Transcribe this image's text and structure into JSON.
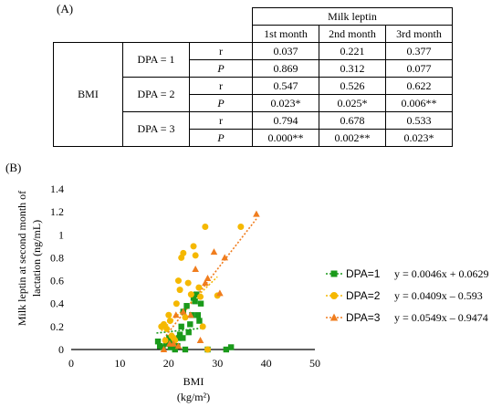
{
  "panel_a_label": "(A)",
  "panel_b_label": "(B)",
  "table": {
    "group_header": "Milk leptin",
    "column_headers": [
      "1st month",
      "2nd month",
      "3rd month"
    ],
    "row_variable": "BMI",
    "groups": [
      {
        "dpa_label": "DPA = 1",
        "r_label": "r",
        "p_label": "P",
        "r_values": [
          "0.037",
          "0.221",
          "0.377"
        ],
        "p_values": [
          "0.869",
          "0.312",
          "0.077"
        ]
      },
      {
        "dpa_label": "DPA = 2",
        "r_label": "r",
        "p_label": "P",
        "r_values": [
          "0.547",
          "0.526",
          "0.622"
        ],
        "p_values": [
          "0.023*",
          "0.025*",
          "0.006**"
        ]
      },
      {
        "dpa_label": "DPA = 3",
        "r_label": "r",
        "p_label": "P",
        "r_values": [
          "0.794",
          "0.678",
          "0.533"
        ],
        "p_values": [
          "0.000**",
          "0.002**",
          "0.023*"
        ]
      }
    ]
  },
  "chart_data": {
    "type": "scatter",
    "title": "",
    "xlabel": "BMI",
    "xlabel_unit": "(kg/m²)",
    "ylabel_line1": "Milk leptin at second month of",
    "ylabel_line2": "lactation (ng/mL)",
    "xlim": [
      0,
      50
    ],
    "ylim": [
      0,
      1.4
    ],
    "x_ticks": [
      "0",
      "10",
      "20",
      "30",
      "40",
      "50"
    ],
    "y_ticks": [
      "0",
      "0.2",
      "0.4",
      "0.6",
      "0.8",
      "1",
      "1.2",
      "1.4"
    ],
    "grid": false,
    "legend_position": "right",
    "series": [
      {
        "name": "DPA=1",
        "equation": "y = 0.0046x + 0.0629",
        "marker": "square",
        "color": "#1a9a1a",
        "trendline": {
          "x": [
            17.5,
            27.5
          ]
        },
        "points": [
          [
            17.8,
            0.07
          ],
          [
            18.2,
            0.03
          ],
          [
            18.8,
            0.02
          ],
          [
            19.5,
            0.05
          ],
          [
            20.1,
            0.1
          ],
          [
            20.4,
            0.02
          ],
          [
            20.9,
            0.05
          ],
          [
            21.3,
            0.0
          ],
          [
            21.8,
            0.03
          ],
          [
            22.3,
            0.13
          ],
          [
            22.6,
            0.2
          ],
          [
            22.9,
            0.1
          ],
          [
            23.4,
            0.0
          ],
          [
            23.7,
            0.38
          ],
          [
            24.1,
            0.15
          ],
          [
            24.4,
            0.22
          ],
          [
            24.8,
            0.3
          ],
          [
            25.1,
            0.45
          ],
          [
            25.4,
            0.42
          ],
          [
            25.7,
            0.48
          ],
          [
            26.0,
            0.3
          ],
          [
            26.3,
            0.25
          ],
          [
            26.6,
            0.4
          ],
          [
            22.1,
            0.1
          ],
          [
            23.0,
            0.33
          ],
          [
            28.0,
            0.0
          ],
          [
            31.8,
            0.0
          ],
          [
            32.8,
            0.02
          ]
        ]
      },
      {
        "name": "DPA=2",
        "equation": "y = 0.0409x – 0.593",
        "marker": "circle",
        "color": "#f5b800",
        "trendline": {
          "x": [
            18.5,
            30.0
          ]
        },
        "points": [
          [
            18.5,
            0.2
          ],
          [
            19.0,
            0.22
          ],
          [
            19.3,
            0.08
          ],
          [
            19.6,
            0.18
          ],
          [
            20.0,
            0.3
          ],
          [
            20.3,
            0.25
          ],
          [
            20.6,
            0.12
          ],
          [
            21.0,
            0.1
          ],
          [
            21.3,
            0.08
          ],
          [
            21.6,
            0.4
          ],
          [
            22.0,
            0.6
          ],
          [
            22.3,
            0.52
          ],
          [
            22.6,
            0.8
          ],
          [
            23.0,
            0.84
          ],
          [
            23.4,
            0.28
          ],
          [
            24.0,
            0.58
          ],
          [
            24.6,
            0.48
          ],
          [
            25.1,
            0.9
          ],
          [
            25.5,
            0.82
          ],
          [
            26.2,
            0.54
          ],
          [
            26.5,
            0.46
          ],
          [
            27.0,
            0.2
          ],
          [
            27.5,
            1.07
          ],
          [
            28.0,
            0.0
          ],
          [
            30.0,
            0.47
          ],
          [
            34.8,
            1.07
          ]
        ]
      },
      {
        "name": "DPA=3",
        "equation": "y = 0.0549x – 0.9474",
        "marker": "triangle",
        "color": "#f07d1e",
        "trendline": {
          "x": [
            19.0,
            38.0
          ]
        },
        "points": [
          [
            19.0,
            0.0
          ],
          [
            20.2,
            0.05
          ],
          [
            21.0,
            0.05
          ],
          [
            21.5,
            0.3
          ],
          [
            22.0,
            0.03
          ],
          [
            23.0,
            0.33
          ],
          [
            24.5,
            0.3
          ],
          [
            25.5,
            0.7
          ],
          [
            26.5,
            0.08
          ],
          [
            27.5,
            0.58
          ],
          [
            28.0,
            0.62
          ],
          [
            29.3,
            0.85
          ],
          [
            30.5,
            0.49
          ],
          [
            31.5,
            0.8
          ],
          [
            38.0,
            1.18
          ]
        ]
      }
    ]
  }
}
